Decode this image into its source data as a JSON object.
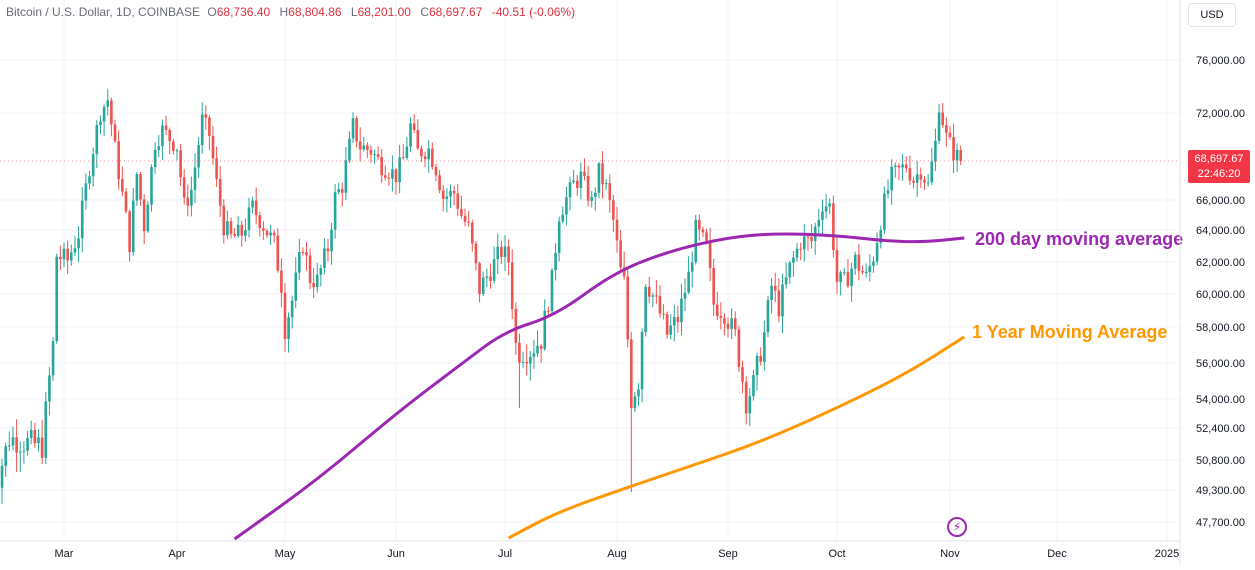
{
  "header": {
    "symbol": "Bitcoin / U.S. Dollar, 1D, COINBASE",
    "open_label": "O",
    "open": "68,736.40",
    "high_label": "H",
    "high": "68,804.86",
    "low_label": "L",
    "low": "68,201.00",
    "close_label": "C",
    "close": "68,697.67",
    "change": "-40.51 (-0.06%)"
  },
  "currency_button": "USD",
  "last_price": {
    "price": "68,697.67",
    "countdown": "22:46:20"
  },
  "colors": {
    "up": "#26a69a",
    "down": "#ef5350",
    "ma200": "#9c27b0",
    "ma1y": "#ff9800",
    "price_tag": "#f23645"
  },
  "icons": {
    "replay": "lightning-icon"
  },
  "chart_data": {
    "type": "candlestick",
    "y_tick_labels": [
      "76,000.00",
      "72,000.00",
      "66,000.00",
      "64,000.00",
      "62,000.00",
      "60,000.00",
      "58,000.00",
      "56,000.00",
      "54,000.00",
      "52,400.00",
      "50,800.00",
      "49,300.00",
      "47,700.00"
    ],
    "y_ticks": [
      76000,
      72000,
      66000,
      64000,
      62000,
      60000,
      58000,
      56000,
      54000,
      52400,
      50800,
      49300,
      47700
    ],
    "x_tick_labels": [
      "Mar",
      "Apr",
      "May",
      "Jun",
      "Jul",
      "Aug",
      "Sep",
      "Oct",
      "Nov",
      "Dec",
      "2025"
    ],
    "x_ticks": [
      "2024-03-01",
      "2024-04-01",
      "2024-05-01",
      "2024-06-01",
      "2024-07-01",
      "2024-08-01",
      "2024-09-01",
      "2024-10-01",
      "2024-11-01",
      "2024-12-01",
      "2025-01-01"
    ],
    "x_range": [
      "2024-02-10",
      "2025-01-21"
    ],
    "price_axis": {
      "ticks": [
        76000,
        72000,
        66000,
        64000,
        62000,
        60000,
        58000,
        56000,
        54000,
        52400,
        50800,
        49300,
        47700
      ],
      "labels": [
        "76,000.00",
        "72,000.00",
        "66,000.00",
        "64,000.00",
        "62,000.00",
        "60,000.00",
        "58,000.00",
        "56,000.00",
        "54,000.00",
        "52,400.00",
        "50,800.00",
        "49,300.00",
        "47,700.00"
      ]
    },
    "close_keypoints": [
      [
        "2024-02-10",
        48200
      ],
      [
        "2024-02-12",
        50000
      ],
      [
        "2024-02-15",
        51900
      ],
      [
        "2024-02-19",
        51700
      ],
      [
        "2024-02-24",
        51500
      ],
      [
        "2024-02-27",
        57000
      ],
      [
        "2024-02-28",
        62400
      ],
      [
        "2024-03-02",
        62100
      ],
      [
        "2024-03-05",
        63800
      ],
      [
        "2024-03-08",
        68300
      ],
      [
        "2024-03-11",
        72100
      ],
      [
        "2024-03-13",
        73000
      ],
      [
        "2024-03-15",
        69500
      ],
      [
        "2024-03-19",
        63200
      ],
      [
        "2024-03-21",
        67800
      ],
      [
        "2024-03-23",
        64300
      ],
      [
        "2024-03-26",
        70000
      ],
      [
        "2024-03-28",
        70800
      ],
      [
        "2024-04-01",
        69700
      ],
      [
        "2024-04-03",
        65600
      ],
      [
        "2024-04-05",
        66700
      ],
      [
        "2024-04-08",
        71500
      ],
      [
        "2024-04-10",
        70500
      ],
      [
        "2024-04-12",
        67100
      ],
      [
        "2024-04-14",
        64300
      ],
      [
        "2024-04-16",
        63500
      ],
      [
        "2024-04-19",
        63800
      ],
      [
        "2024-04-22",
        65500
      ],
      [
        "2024-04-25",
        64300
      ],
      [
        "2024-04-28",
        63100
      ],
      [
        "2024-04-30",
        60600
      ],
      [
        "2024-05-01",
        58000
      ],
      [
        "2024-05-03",
        59600
      ],
      [
        "2024-05-06",
        63200
      ],
      [
        "2024-05-08",
        61000
      ],
      [
        "2024-05-10",
        60800
      ],
      [
        "2024-05-13",
        62900
      ],
      [
        "2024-05-15",
        66200
      ],
      [
        "2024-05-17",
        67000
      ],
      [
        "2024-05-20",
        71100
      ],
      [
        "2024-05-22",
        69700
      ],
      [
        "2024-05-25",
        69400
      ],
      [
        "2024-05-28",
        68400
      ],
      [
        "2024-06-01",
        67700
      ],
      [
        "2024-06-03",
        68800
      ],
      [
        "2024-06-05",
        71100
      ],
      [
        "2024-06-07",
        69300
      ],
      [
        "2024-06-10",
        69500
      ],
      [
        "2024-06-12",
        68200
      ],
      [
        "2024-06-14",
        66200
      ],
      [
        "2024-06-17",
        66500
      ],
      [
        "2024-06-19",
        65000
      ],
      [
        "2024-06-21",
        64100
      ],
      [
        "2024-06-24",
        60300
      ],
      [
        "2024-06-27",
        61500
      ],
      [
        "2024-06-30",
        62700
      ],
      [
        "2024-07-02",
        62100
      ],
      [
        "2024-07-04",
        57000
      ],
      [
        "2024-07-05",
        56600
      ],
      [
        "2024-07-08",
        56700
      ],
      [
        "2024-07-11",
        57300
      ],
      [
        "2024-07-14",
        60800
      ],
      [
        "2024-07-16",
        65100
      ],
      [
        "2024-07-20",
        67100
      ],
      [
        "2024-07-22",
        67600
      ],
      [
        "2024-07-25",
        65800
      ],
      [
        "2024-07-27",
        67900
      ],
      [
        "2024-07-29",
        66800
      ],
      [
        "2024-07-31",
        64600
      ],
      [
        "2024-08-02",
        61400
      ],
      [
        "2024-08-03",
        60700
      ],
      [
        "2024-08-05",
        54000
      ],
      [
        "2024-08-07",
        55000
      ],
      [
        "2024-08-09",
        60900
      ],
      [
        "2024-08-12",
        59400
      ],
      [
        "2024-08-15",
        57600
      ],
      [
        "2024-08-18",
        58500
      ],
      [
        "2024-08-21",
        61100
      ],
      [
        "2024-08-23",
        64000
      ],
      [
        "2024-08-26",
        62900
      ],
      [
        "2024-08-28",
        59400
      ],
      [
        "2024-08-31",
        58900
      ],
      [
        "2024-09-03",
        57500
      ],
      [
        "2024-09-06",
        53900
      ],
      [
        "2024-09-08",
        54800
      ],
      [
        "2024-09-11",
        57600
      ],
      [
        "2024-09-13",
        60500
      ],
      [
        "2024-09-15",
        59200
      ],
      [
        "2024-09-18",
        61600
      ],
      [
        "2024-09-21",
        63300
      ],
      [
        "2024-09-24",
        63300
      ],
      [
        "2024-09-27",
        65800
      ],
      [
        "2024-09-29",
        65600
      ],
      [
        "2024-10-01",
        60800
      ],
      [
        "2024-10-03",
        60700
      ],
      [
        "2024-10-06",
        62100
      ],
      [
        "2024-10-09",
        61000
      ],
      [
        "2024-10-11",
        62400
      ],
      [
        "2024-10-14",
        65800
      ],
      [
        "2024-10-16",
        67600
      ],
      [
        "2024-10-20",
        68400
      ],
      [
        "2024-10-22",
        67400
      ],
      [
        "2024-10-24",
        68100
      ],
      [
        "2024-10-26",
        67000
      ],
      [
        "2024-10-28",
        69900
      ],
      [
        "2024-10-29",
        72700
      ],
      [
        "2024-10-31",
        70300
      ],
      [
        "2024-11-02",
        69300
      ],
      [
        "2024-11-04",
        68697.67
      ]
    ],
    "series": [
      {
        "name": "200 day moving average",
        "points": [
          [
            "2024-04-17",
            46850
          ],
          [
            "2024-05-10",
            49800
          ],
          [
            "2024-06-01",
            53200
          ],
          [
            "2024-06-20",
            56100
          ],
          [
            "2024-07-01",
            57750
          ],
          [
            "2024-07-15",
            58700
          ],
          [
            "2024-07-31",
            61300
          ],
          [
            "2024-08-15",
            62650
          ],
          [
            "2024-09-01",
            63550
          ],
          [
            "2024-09-15",
            63800
          ],
          [
            "2024-10-01",
            63650
          ],
          [
            "2024-10-15",
            63300
          ],
          [
            "2024-10-25",
            63250
          ],
          [
            "2024-11-05",
            63500
          ]
        ]
      },
      {
        "name": "1 Year Moving Average",
        "points": [
          [
            "2024-07-02",
            46900
          ],
          [
            "2024-07-15",
            48150
          ],
          [
            "2024-08-01",
            49250
          ],
          [
            "2024-08-20",
            50400
          ],
          [
            "2024-09-10",
            51700
          ],
          [
            "2024-10-01",
            53500
          ],
          [
            "2024-10-20",
            55400
          ],
          [
            "2024-11-05",
            57450
          ]
        ]
      }
    ],
    "last_price": 68697.67
  }
}
